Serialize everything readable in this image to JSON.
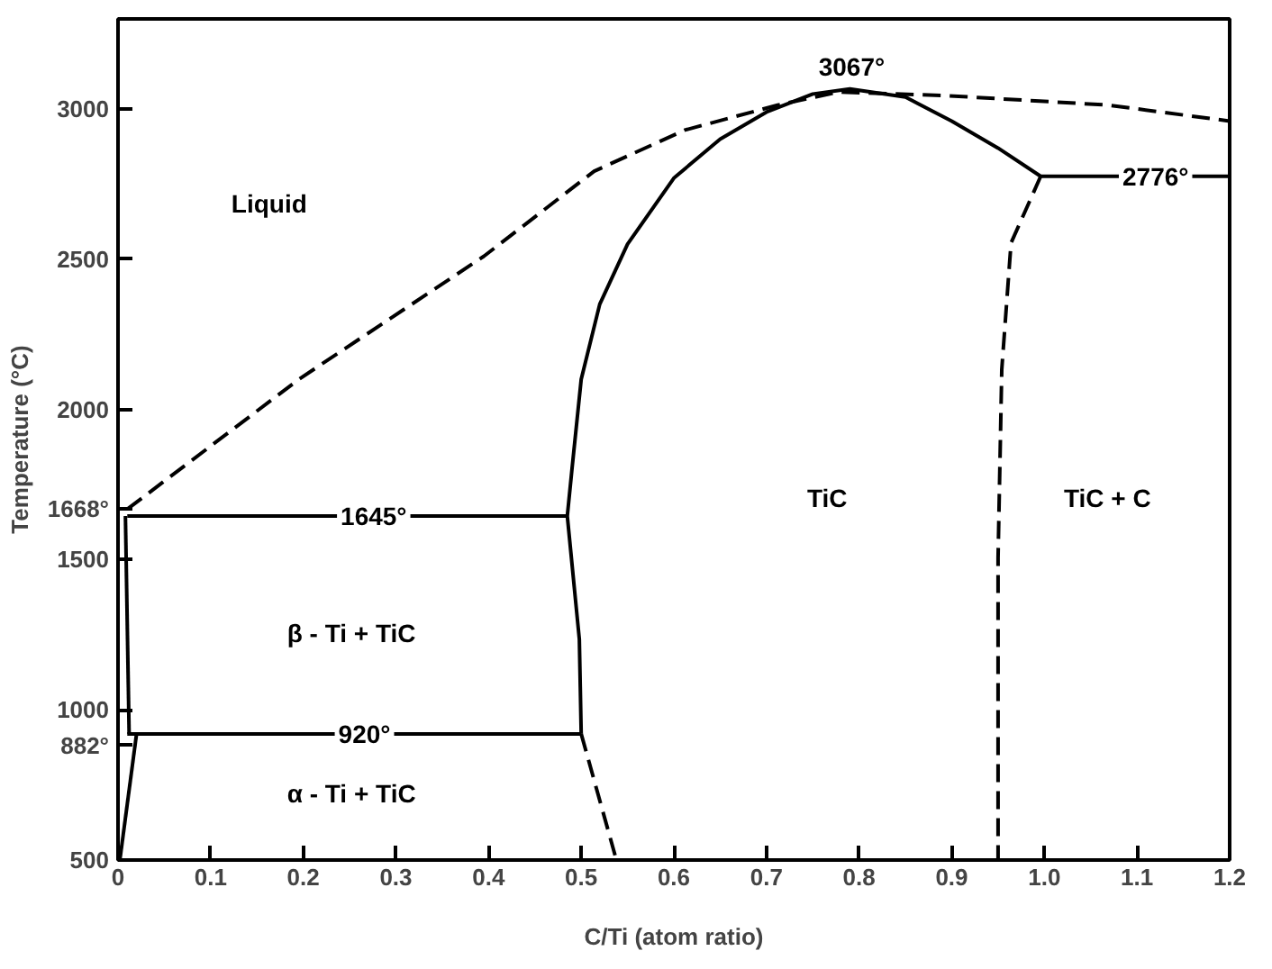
{
  "chart_data": {
    "type": "line",
    "xlabel": "C/Ti (atom ratio)",
    "ylabel": "Temperature (°C)",
    "xlim": [
      0,
      1.2
    ],
    "ylim": [
      500,
      3300
    ],
    "xticks": [
      0,
      0.1,
      0.2,
      0.3,
      0.4,
      0.5,
      0.6,
      0.7,
      0.8,
      0.9,
      {
        "value": 1.0,
        "label": "1.0"
      },
      1.1,
      1.2
    ],
    "yticks": [
      500,
      {
        "value": 882,
        "label": "882°"
      },
      1000,
      1500,
      {
        "value": 1668,
        "label": "1668°"
      },
      2000,
      2500,
      3000
    ],
    "grid": false,
    "marker": "none",
    "series": [
      {
        "color": "#000000",
        "line_style": "dashed",
        "x": [
          0.01,
          0.196,
          0.395,
          0.514,
          0.612,
          0.712,
          0.778,
          0.897,
          1.069,
          1.2
        ],
        "values": [
          1668,
          2102,
          2510,
          2793,
          2930,
          3013,
          3057,
          3044,
          3013,
          2960
        ]
      },
      {
        "color": "#000000",
        "line_style": "solid",
        "x": [
          0.5,
          0.498,
          0.485,
          0.49,
          0.5,
          0.52,
          0.55,
          0.6,
          0.65,
          0.7,
          0.75,
          0.79,
          0.85,
          0.9,
          0.95,
          0.996,
          1.2
        ],
        "values": [
          920,
          1235,
          1645,
          1800,
          2100,
          2350,
          2550,
          2770,
          2900,
          2990,
          3050,
          3067,
          3040,
          2960,
          2870,
          2776,
          2776
        ]
      },
      {
        "color": "#000000",
        "line_style": "dashed",
        "x": [
          0.5,
          0.538
        ],
        "values": [
          920,
          500
        ]
      },
      {
        "color": "#000000",
        "line_style": "dashed",
        "x": [
          0.996,
          0.964,
          0.954,
          0.95,
          0.95
        ],
        "values": [
          2776,
          2554,
          2133,
          1505,
          500
        ]
      },
      {
        "color": "#000000",
        "line_style": "solid",
        "x": [
          0.01,
          0.485
        ],
        "values": [
          1645,
          1645
        ]
      },
      {
        "color": "#000000",
        "line_style": "solid",
        "x": [
          0.01,
          0.5
        ],
        "values": [
          920,
          920
        ]
      },
      {
        "color": "#000000",
        "line_style": "solid",
        "x": [
          0.008,
          0.012
        ],
        "values": [
          1645,
          920
        ]
      },
      {
        "color": "#000000",
        "line_style": "solid",
        "x": [
          0.02,
          0.002
        ],
        "values": [
          920,
          500
        ]
      }
    ],
    "annotations": [
      "Liquid",
      "TiC",
      "TiC + C",
      "β - Ti + TiC",
      "α - Ti + TiC",
      {
        "text": "3067°",
        "x": 0.792,
        "y": 3140
      },
      {
        "text": "2776°",
        "x": 1.12,
        "y": 2776
      },
      {
        "text": "1645°",
        "x": 0.276,
        "y": 1645
      },
      {
        "text": "920°",
        "x": 0.266,
        "y": 920
      }
    ]
  }
}
